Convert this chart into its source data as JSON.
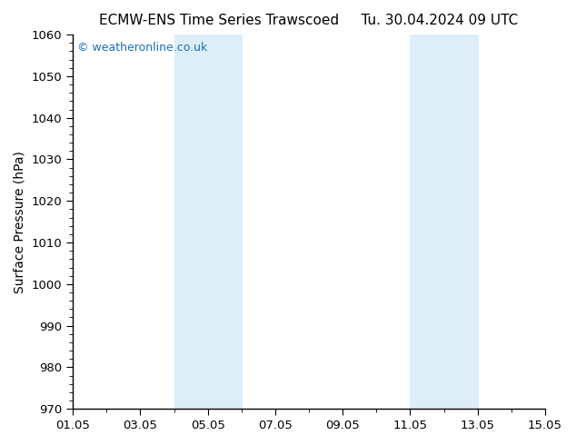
{
  "title_left": "ECMW-ENS Time Series Trawscoed",
  "title_right": "Tu. 30.04.2024 09 UTC",
  "ylabel": "Surface Pressure (hPa)",
  "xlim_start": 0,
  "xlim_end": 14,
  "ylim": [
    970,
    1060
  ],
  "yticks": [
    970,
    980,
    990,
    1000,
    1010,
    1020,
    1030,
    1040,
    1050,
    1060
  ],
  "xtick_labels": [
    "01.05",
    "03.05",
    "05.05",
    "07.05",
    "09.05",
    "11.05",
    "13.05",
    "15.05"
  ],
  "xtick_positions": [
    0,
    2,
    4,
    6,
    8,
    10,
    12,
    14
  ],
  "shaded_bands": [
    {
      "x_start": 3.0,
      "x_end": 5.0
    },
    {
      "x_start": 10.0,
      "x_end": 12.0
    }
  ],
  "band_color": "#ddeef8",
  "background_color": "#ffffff",
  "watermark_text": "© weatheronline.co.uk",
  "watermark_color": "#1a6fbd",
  "watermark_fontsize": 9,
  "title_fontsize": 11,
  "ylabel_fontsize": 10,
  "tick_fontsize": 9.5
}
